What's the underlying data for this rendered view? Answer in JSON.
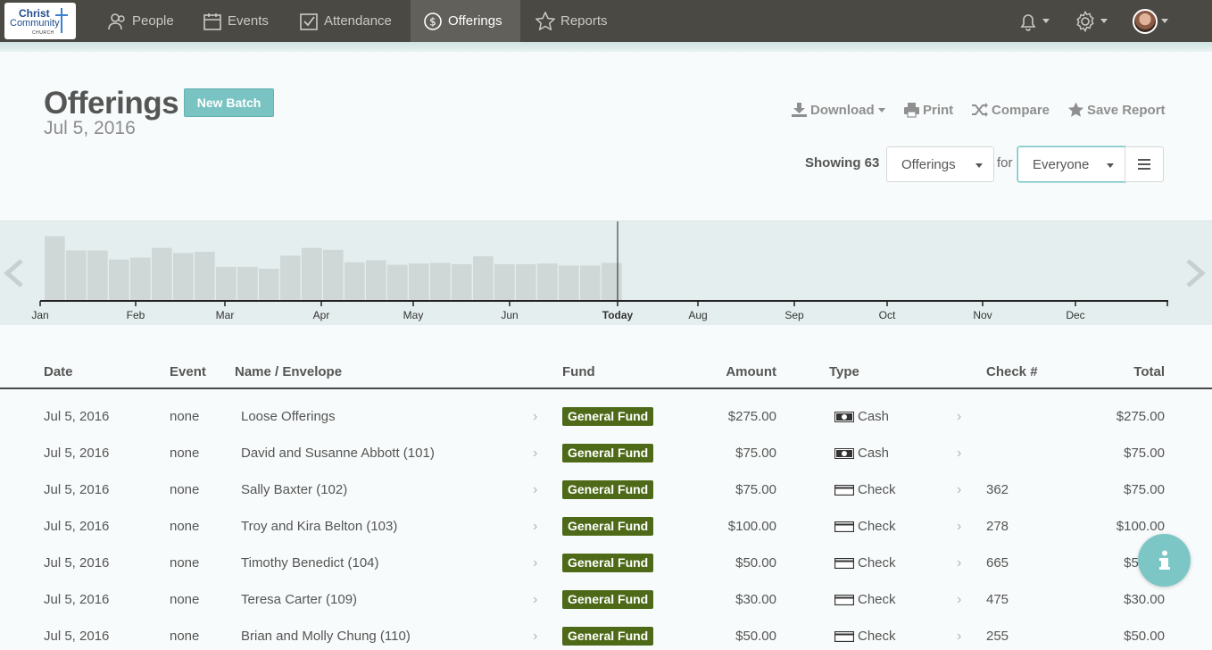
{
  "nav": {
    "logo_line1": "Christ",
    "logo_line2": "Community",
    "logo_line3": "CHURCH",
    "items": [
      {
        "label": "People",
        "icon": "people-icon"
      },
      {
        "label": "Events",
        "icon": "calendar-icon"
      },
      {
        "label": "Attendance",
        "icon": "checkbox-icon"
      },
      {
        "label": "Offerings",
        "icon": "dollar-circle-icon",
        "active": true
      },
      {
        "label": "Reports",
        "icon": "star-icon"
      }
    ]
  },
  "header": {
    "title": "Offerings",
    "date": "Jul 5, 2016",
    "new_batch_label": "New Batch",
    "actions": {
      "download": "Download",
      "print": "Print",
      "compare": "Compare",
      "save_report": "Save Report"
    },
    "showing_label": "Showing 63",
    "offerings_select": "Offerings",
    "for_label": "for",
    "everyone_select": "Everyone"
  },
  "timeline": {
    "months": [
      "Jan",
      "Feb",
      "Mar",
      "Apr",
      "May",
      "Jun",
      "Today",
      "Aug",
      "Sep",
      "Oct",
      "Nov",
      "Dec"
    ],
    "weekly_levels": [
      0.98,
      0.76,
      0.76,
      0.62,
      0.65,
      0.8,
      0.72,
      0.74,
      0.51,
      0.51,
      0.48,
      0.68,
      0.8,
      0.77,
      0.58,
      0.61,
      0.54,
      0.56,
      0.57,
      0.55,
      0.67,
      0.55,
      0.55,
      0.56,
      0.53,
      0.53,
      0.57
    ]
  },
  "table": {
    "headers": {
      "date": "Date",
      "event": "Event",
      "name": "Name / Envelope",
      "fund": "Fund",
      "amount": "Amount",
      "type": "Type",
      "check": "Check #",
      "total": "Total"
    },
    "rows": [
      {
        "date": "Jul 5, 2016",
        "event": "none",
        "name": "Loose Offerings",
        "fund": "General Fund",
        "amount": "$275.00",
        "type": "Cash",
        "check": "",
        "total": "$275.00"
      },
      {
        "date": "Jul 5, 2016",
        "event": "none",
        "name": "David and Susanne Abbott (101)",
        "fund": "General Fund",
        "amount": "$75.00",
        "type": "Cash",
        "check": "",
        "total": "$75.00"
      },
      {
        "date": "Jul 5, 2016",
        "event": "none",
        "name": "Sally Baxter (102)",
        "fund": "General Fund",
        "amount": "$75.00",
        "type": "Check",
        "check": "362",
        "total": "$75.00"
      },
      {
        "date": "Jul 5, 2016",
        "event": "none",
        "name": "Troy and Kira Belton (103)",
        "fund": "General Fund",
        "amount": "$100.00",
        "type": "Check",
        "check": "278",
        "total": "$100.00"
      },
      {
        "date": "Jul 5, 2016",
        "event": "none",
        "name": "Timothy Benedict (104)",
        "fund": "General Fund",
        "amount": "$50.00",
        "type": "Check",
        "check": "665",
        "total": "$50.00"
      },
      {
        "date": "Jul 5, 2016",
        "event": "none",
        "name": "Teresa Carter (109)",
        "fund": "General Fund",
        "amount": "$30.00",
        "type": "Check",
        "check": "475",
        "total": "$30.00"
      },
      {
        "date": "Jul 5, 2016",
        "event": "none",
        "name": "Brian and Molly Chung (110)",
        "fund": "General Fund",
        "amount": "$50.00",
        "type": "Check",
        "check": "255",
        "total": "$50.00"
      }
    ]
  },
  "colors": {
    "nav_bg": "#4b4944",
    "accent": "#7cc7c6",
    "fund_badge": "#4e6a18"
  }
}
